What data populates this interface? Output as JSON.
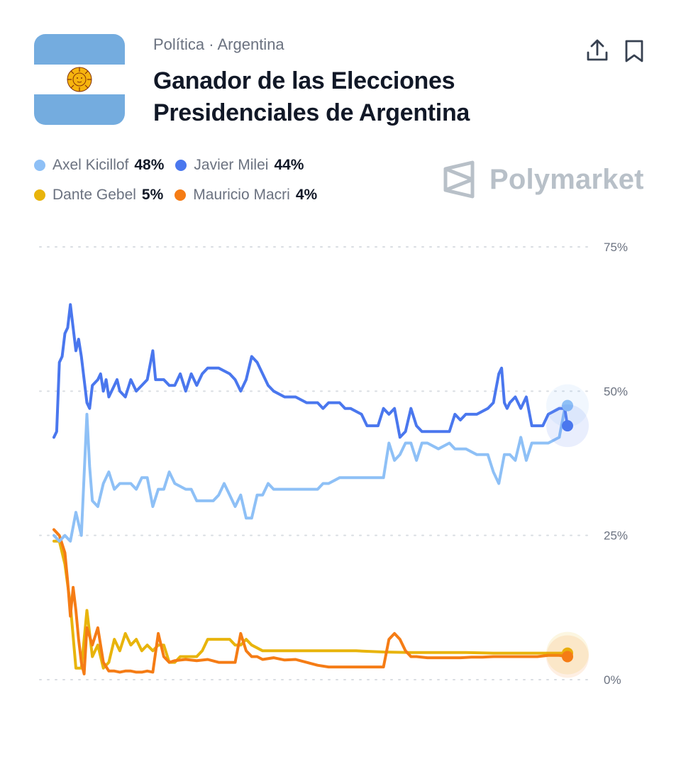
{
  "header": {
    "category": "Política · Argentina",
    "title": "Ganador de las Elecciones Presidenciales de Argentina",
    "share_icon": "share-upload-icon",
    "bookmark_icon": "bookmark-icon",
    "flag": "argentina-flag"
  },
  "brand": {
    "name": "Polymarket",
    "icon": "polymarket-logo-icon",
    "color": "#b8c0c8"
  },
  "legend": [
    {
      "name": "Axel Kicillof",
      "value": "48%",
      "color": "#8ec0f6"
    },
    {
      "name": "Javier Milei",
      "value": "44%",
      "color": "#4a77ee"
    },
    {
      "name": "Dante Gebel",
      "value": "5%",
      "color": "#e8b40b"
    },
    {
      "name": "Mauricio Macri",
      "value": "4%",
      "color": "#f57c15"
    }
  ],
  "chart_data": {
    "type": "line",
    "ylim": [
      0,
      75
    ],
    "yticks": [
      "0%",
      "25%",
      "50%",
      "75%"
    ],
    "ytick_values": [
      0,
      25,
      50,
      75
    ],
    "grid": true,
    "legend_position": "top-left",
    "x_index_range": [
      0,
      100
    ],
    "series": [
      {
        "name": "Javier Milei",
        "color": "#4a77ee",
        "points": [
          [
            0,
            42
          ],
          [
            0.5,
            43
          ],
          [
            1,
            55
          ],
          [
            1.5,
            56
          ],
          [
            2,
            60
          ],
          [
            2.5,
            61
          ],
          [
            3,
            65
          ],
          [
            3.5,
            61
          ],
          [
            4,
            57
          ],
          [
            4.5,
            59
          ],
          [
            5,
            56
          ],
          [
            6,
            48
          ],
          [
            6.5,
            47
          ],
          [
            7,
            51
          ],
          [
            8,
            52
          ],
          [
            8.5,
            53
          ],
          [
            9,
            50
          ],
          [
            9.5,
            52
          ],
          [
            10,
            49
          ],
          [
            11,
            51
          ],
          [
            11.5,
            52
          ],
          [
            12,
            50
          ],
          [
            13,
            49
          ],
          [
            14,
            52
          ],
          [
            15,
            50
          ],
          [
            16,
            51
          ],
          [
            17,
            52
          ],
          [
            18,
            57
          ],
          [
            18.5,
            52
          ],
          [
            20,
            52
          ],
          [
            21,
            51
          ],
          [
            22,
            51
          ],
          [
            23,
            53
          ],
          [
            24,
            50
          ],
          [
            25,
            53
          ],
          [
            26,
            51
          ],
          [
            27,
            53
          ],
          [
            28,
            54
          ],
          [
            30,
            54
          ],
          [
            32,
            53
          ],
          [
            33,
            52
          ],
          [
            34,
            50
          ],
          [
            35,
            52
          ],
          [
            36,
            56
          ],
          [
            37,
            55
          ],
          [
            38,
            53
          ],
          [
            39,
            51
          ],
          [
            40,
            50
          ],
          [
            42,
            49
          ],
          [
            44,
            49
          ],
          [
            46,
            48
          ],
          [
            48,
            48
          ],
          [
            49,
            47
          ],
          [
            50,
            48
          ],
          [
            52,
            48
          ],
          [
            53,
            47
          ],
          [
            54,
            47
          ],
          [
            56,
            46
          ],
          [
            57,
            44
          ],
          [
            59,
            44
          ],
          [
            60,
            47
          ],
          [
            61,
            46
          ],
          [
            62,
            47
          ],
          [
            63,
            42
          ],
          [
            64,
            43
          ],
          [
            65,
            47
          ],
          [
            66,
            44
          ],
          [
            67,
            43
          ],
          [
            69,
            43
          ],
          [
            72,
            43
          ],
          [
            73,
            46
          ],
          [
            74,
            45
          ],
          [
            75,
            46
          ],
          [
            77,
            46
          ],
          [
            79,
            47
          ],
          [
            80,
            48
          ],
          [
            81,
            53
          ],
          [
            81.5,
            54
          ],
          [
            82,
            48
          ],
          [
            82.5,
            47
          ],
          [
            83,
            48
          ],
          [
            84,
            49
          ],
          [
            85,
            47
          ],
          [
            86,
            49
          ],
          [
            87,
            44
          ],
          [
            88,
            44
          ],
          [
            89,
            44
          ],
          [
            90,
            46
          ],
          [
            92,
            47
          ],
          [
            93,
            47
          ],
          [
            93.5,
            44
          ]
        ]
      },
      {
        "name": "Axel Kicillof",
        "color": "#8ec0f6",
        "points": [
          [
            0,
            25
          ],
          [
            1,
            24
          ],
          [
            2,
            25
          ],
          [
            3,
            24
          ],
          [
            4,
            29
          ],
          [
            5,
            25
          ],
          [
            6,
            46
          ],
          [
            6.5,
            37
          ],
          [
            7,
            31
          ],
          [
            8,
            30
          ],
          [
            9,
            34
          ],
          [
            10,
            36
          ],
          [
            11,
            33
          ],
          [
            12,
            34
          ],
          [
            14,
            34
          ],
          [
            15,
            33
          ],
          [
            16,
            35
          ],
          [
            17,
            35
          ],
          [
            18,
            30
          ],
          [
            19,
            33
          ],
          [
            20,
            33
          ],
          [
            21,
            36
          ],
          [
            22,
            34
          ],
          [
            24,
            33
          ],
          [
            25,
            33
          ],
          [
            26,
            31
          ],
          [
            27,
            31
          ],
          [
            29,
            31
          ],
          [
            30,
            32
          ],
          [
            31,
            34
          ],
          [
            32,
            32
          ],
          [
            33,
            30
          ],
          [
            34,
            32
          ],
          [
            35,
            28
          ],
          [
            36,
            28
          ],
          [
            37,
            32
          ],
          [
            38,
            32
          ],
          [
            39,
            34
          ],
          [
            40,
            33
          ],
          [
            42,
            33
          ],
          [
            44,
            33
          ],
          [
            46,
            33
          ],
          [
            48,
            33
          ],
          [
            49,
            34
          ],
          [
            50,
            34
          ],
          [
            52,
            35
          ],
          [
            54,
            35
          ],
          [
            56,
            35
          ],
          [
            58,
            35
          ],
          [
            60,
            35
          ],
          [
            61,
            41
          ],
          [
            62,
            38
          ],
          [
            63,
            39
          ],
          [
            64,
            41
          ],
          [
            65,
            41
          ],
          [
            66,
            38
          ],
          [
            67,
            41
          ],
          [
            68,
            41
          ],
          [
            70,
            40
          ],
          [
            72,
            41
          ],
          [
            73,
            40
          ],
          [
            74,
            40
          ],
          [
            75,
            40
          ],
          [
            77,
            39
          ],
          [
            79,
            39
          ],
          [
            80,
            36
          ],
          [
            81,
            34
          ],
          [
            82,
            39
          ],
          [
            83,
            39
          ],
          [
            84,
            38
          ],
          [
            85,
            42
          ],
          [
            86,
            38
          ],
          [
            87,
            41
          ],
          [
            88,
            41
          ],
          [
            90,
            41
          ],
          [
            92,
            42
          ],
          [
            93,
            47
          ],
          [
            93.5,
            47.5
          ]
        ]
      },
      {
        "name": "Dante Gebel",
        "color": "#e8b40b",
        "points": [
          [
            0,
            24
          ],
          [
            1,
            24
          ],
          [
            2,
            20
          ],
          [
            3,
            13
          ],
          [
            4,
            2
          ],
          [
            5,
            2
          ],
          [
            6,
            12
          ],
          [
            7,
            4
          ],
          [
            8,
            6
          ],
          [
            9,
            2
          ],
          [
            10,
            3
          ],
          [
            11,
            7
          ],
          [
            12,
            5
          ],
          [
            13,
            8
          ],
          [
            14,
            6
          ],
          [
            15,
            7
          ],
          [
            16,
            5
          ],
          [
            17,
            6
          ],
          [
            18,
            5
          ],
          [
            19,
            6
          ],
          [
            20,
            6
          ],
          [
            21,
            3
          ],
          [
            22,
            3
          ],
          [
            23,
            4
          ],
          [
            24,
            4
          ],
          [
            25,
            4
          ],
          [
            26,
            4
          ],
          [
            27,
            5
          ],
          [
            28,
            7
          ],
          [
            30,
            7
          ],
          [
            32,
            7
          ],
          [
            33,
            6
          ],
          [
            34,
            6
          ],
          [
            35,
            7
          ],
          [
            36,
            6
          ],
          [
            38,
            5
          ],
          [
            40,
            5
          ],
          [
            45,
            5
          ],
          [
            50,
            5
          ],
          [
            55,
            5
          ],
          [
            60,
            4.8
          ],
          [
            65,
            4.7
          ],
          [
            70,
            4.7
          ],
          [
            75,
            4.7
          ],
          [
            80,
            4.6
          ],
          [
            85,
            4.6
          ],
          [
            90,
            4.6
          ],
          [
            93.5,
            4.6
          ]
        ]
      },
      {
        "name": "Mauricio Macri",
        "color": "#f57c15",
        "points": [
          [
            0,
            26
          ],
          [
            1,
            25
          ],
          [
            2,
            22
          ],
          [
            2.5,
            17
          ],
          [
            3,
            11
          ],
          [
            3.5,
            16
          ],
          [
            4,
            12
          ],
          [
            4.5,
            7
          ],
          [
            5,
            3
          ],
          [
            5.5,
            1
          ],
          [
            6,
            9
          ],
          [
            7,
            6
          ],
          [
            8,
            9
          ],
          [
            9,
            3
          ],
          [
            10,
            1.5
          ],
          [
            11,
            1.5
          ],
          [
            12,
            1.3
          ],
          [
            13,
            1.5
          ],
          [
            14,
            1.5
          ],
          [
            15,
            1.3
          ],
          [
            16,
            1.3
          ],
          [
            17,
            1.5
          ],
          [
            18,
            1.3
          ],
          [
            19,
            8
          ],
          [
            20,
            4
          ],
          [
            21,
            3
          ],
          [
            22,
            3.3
          ],
          [
            24,
            3.5
          ],
          [
            26,
            3.3
          ],
          [
            28,
            3.5
          ],
          [
            30,
            3
          ],
          [
            32,
            3
          ],
          [
            33,
            3
          ],
          [
            34,
            8
          ],
          [
            35,
            5
          ],
          [
            36,
            4
          ],
          [
            37,
            4
          ],
          [
            38,
            3.5
          ],
          [
            40,
            3.8
          ],
          [
            42,
            3.4
          ],
          [
            44,
            3.5
          ],
          [
            46,
            3
          ],
          [
            48,
            2.5
          ],
          [
            50,
            2.2
          ],
          [
            52,
            2.2
          ],
          [
            54,
            2.2
          ],
          [
            56,
            2.2
          ],
          [
            58,
            2.2
          ],
          [
            60,
            2.2
          ],
          [
            61,
            7
          ],
          [
            62,
            8
          ],
          [
            63,
            7
          ],
          [
            64,
            5
          ],
          [
            65,
            4
          ],
          [
            66,
            4
          ],
          [
            68,
            3.8
          ],
          [
            70,
            3.8
          ],
          [
            72,
            3.8
          ],
          [
            74,
            3.8
          ],
          [
            76,
            3.9
          ],
          [
            78,
            3.9
          ],
          [
            80,
            4
          ],
          [
            82,
            4
          ],
          [
            84,
            4
          ],
          [
            86,
            4
          ],
          [
            88,
            4
          ],
          [
            90,
            4.2
          ],
          [
            92,
            4.2
          ],
          [
            93.5,
            4
          ]
        ]
      }
    ]
  }
}
